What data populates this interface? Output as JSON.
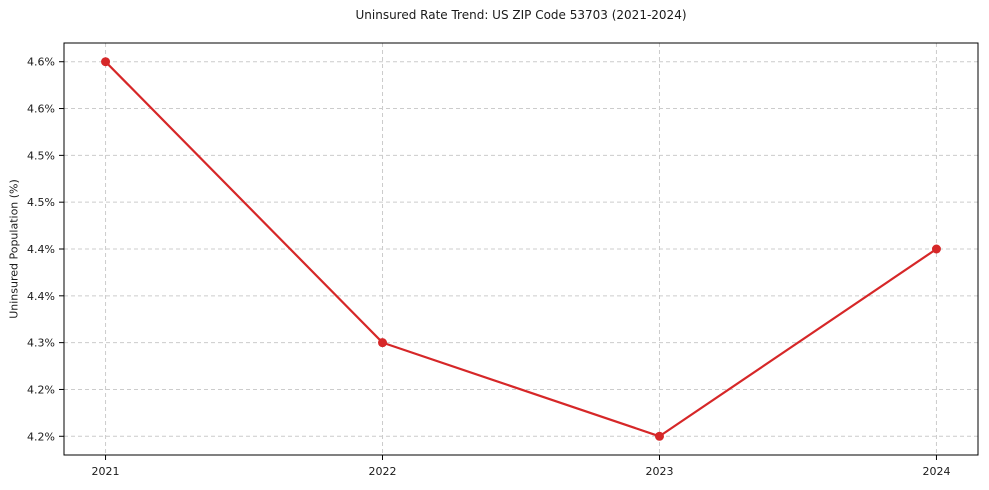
{
  "chart_data": {
    "type": "line",
    "title": "Uninsured Rate Trend: US ZIP Code 53703 (2021-2024)",
    "xlabel": "",
    "ylabel": "Uninsured Population (%)",
    "x": [
      2021,
      2022,
      2023,
      2024
    ],
    "x_tick_labels": [
      "2021",
      "2022",
      "2023",
      "2024"
    ],
    "series": [
      {
        "name": "uninsured-rate",
        "values": [
          4.6,
          4.3,
          4.2,
          4.4
        ],
        "color": "#d62728",
        "marker": "circle"
      }
    ],
    "y_ticks": [
      4.2,
      4.25,
      4.3,
      4.35,
      4.4,
      4.45,
      4.5,
      4.55,
      4.6
    ],
    "y_tick_labels": [
      "4.2%",
      "4.2%",
      "4.3%",
      "4.4%",
      "4.4%",
      "4.5%",
      "4.5%",
      "4.6%",
      "4.6%"
    ],
    "xlim": [
      2020.85,
      2024.15
    ],
    "ylim": [
      4.18,
      4.62
    ],
    "grid": true,
    "legend": false,
    "grid_color": "#cccccc",
    "axis_color": "#000000",
    "background_color": "#ffffff",
    "line_width": 2.2,
    "marker_radius": 4.5
  }
}
